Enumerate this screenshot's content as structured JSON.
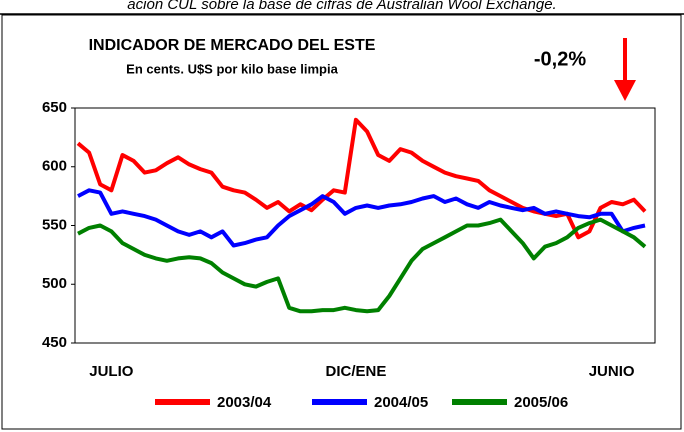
{
  "caption": "ación CUL sobre la base de cifras de Australian Wool Exchange.",
  "chart_data": {
    "type": "line",
    "title": "INDICADOR DE MERCADO DEL ESTE",
    "subtitle": "En cents. U$S por kilo base limpia",
    "annotation": "-0,2%",
    "categories": [
      null,
      null,
      null,
      "JULIO",
      null,
      null,
      null,
      null,
      null,
      null,
      null,
      null,
      null,
      null,
      null,
      null,
      null,
      null,
      null,
      null,
      null,
      null,
      null,
      null,
      null,
      "DIC/ENE",
      null,
      null,
      null,
      null,
      null,
      null,
      null,
      null,
      null,
      null,
      null,
      null,
      null,
      null,
      null,
      null,
      null,
      null,
      null,
      null,
      null,
      null,
      "JUNIO",
      null,
      null,
      null
    ],
    "series": [
      {
        "name": "2003/04",
        "color": "#ff0000",
        "values": [
          620,
          612,
          585,
          580,
          610,
          605,
          595,
          597,
          603,
          608,
          602,
          598,
          595,
          583,
          580,
          578,
          572,
          565,
          570,
          562,
          568,
          563,
          572,
          580,
          578,
          640,
          630,
          610,
          605,
          615,
          612,
          605,
          600,
          595,
          592,
          590,
          588,
          580,
          575,
          570,
          565,
          562,
          560,
          558,
          560,
          540,
          545,
          565,
          570,
          568,
          572,
          562
        ]
      },
      {
        "name": "2004/05",
        "color": "#0000ff",
        "values": [
          575,
          580,
          578,
          560,
          562,
          560,
          558,
          555,
          550,
          545,
          542,
          545,
          540,
          545,
          533,
          535,
          538,
          540,
          550,
          558,
          563,
          568,
          575,
          570,
          560,
          565,
          567,
          565,
          567,
          568,
          570,
          573,
          575,
          570,
          573,
          568,
          565,
          570,
          567,
          565,
          563,
          565,
          560,
          562,
          560,
          558,
          557,
          560,
          560,
          545,
          548,
          550
        ]
      },
      {
        "name": "2005/06",
        "color": "#008000",
        "values": [
          543,
          548,
          550,
          545,
          535,
          530,
          525,
          522,
          520,
          522,
          523,
          522,
          518,
          510,
          505,
          500,
          498,
          502,
          505,
          480,
          477,
          477,
          478,
          478,
          480,
          478,
          477,
          478,
          490,
          505,
          520,
          530,
          535,
          540,
          545,
          550,
          550,
          552,
          555,
          545,
          535,
          522,
          532,
          535,
          540,
          548,
          552,
          555,
          550,
          545,
          540,
          532
        ]
      }
    ],
    "ylim": [
      450,
      650
    ],
    "yticks": [
      450,
      500,
      550,
      600,
      650
    ],
    "grid": false
  }
}
